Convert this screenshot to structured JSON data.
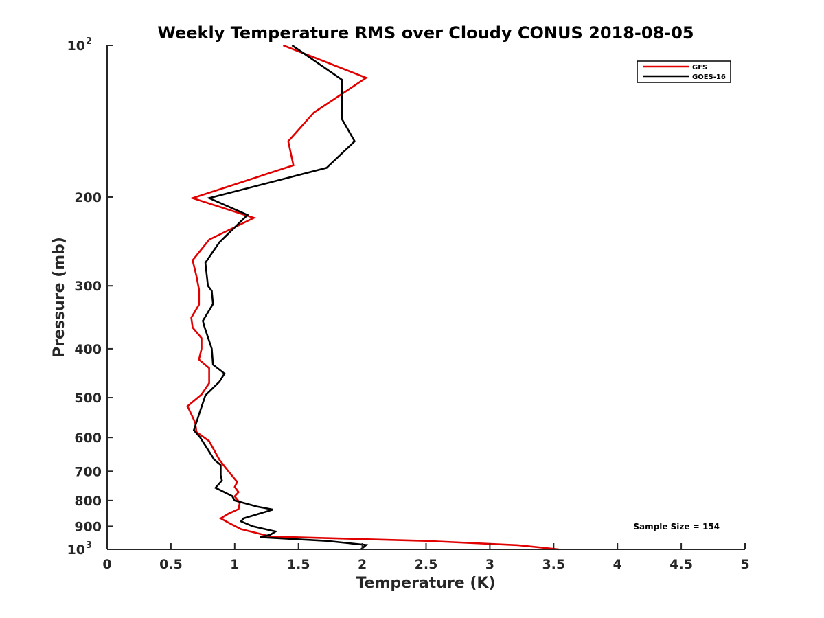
{
  "chart_data": {
    "type": "line",
    "title": "Weekly Temperature RMS over Cloudy CONUS 2018-08-05",
    "xlabel": "Temperature (K)",
    "ylabel": "Pressure (mb)",
    "xlim": [
      0,
      5
    ],
    "ylim": [
      100,
      1000
    ],
    "y_scale": "log",
    "y_reversed": true,
    "grid": false,
    "legend_position": "top-right",
    "x_ticks": [
      {
        "value": 0,
        "label": "0"
      },
      {
        "value": 0.5,
        "label": "0.5"
      },
      {
        "value": 1,
        "label": "1"
      },
      {
        "value": 1.5,
        "label": "1.5"
      },
      {
        "value": 2,
        "label": "2"
      },
      {
        "value": 2.5,
        "label": "2.5"
      },
      {
        "value": 3,
        "label": "3"
      },
      {
        "value": 3.5,
        "label": "3.5"
      },
      {
        "value": 4,
        "label": "4"
      },
      {
        "value": 4.5,
        "label": "4.5"
      },
      {
        "value": 5,
        "label": "5"
      }
    ],
    "y_ticks": [
      {
        "value": 100,
        "base": "10",
        "exp": "2"
      },
      {
        "value": 200,
        "label": "200"
      },
      {
        "value": 300,
        "label": "300"
      },
      {
        "value": 400,
        "label": "400"
      },
      {
        "value": 500,
        "label": "500"
      },
      {
        "value": 600,
        "label": "600"
      },
      {
        "value": 700,
        "label": "700"
      },
      {
        "value": 800,
        "label": "800"
      },
      {
        "value": 900,
        "label": "900"
      },
      {
        "value": 1000,
        "base": "10",
        "exp": "3"
      }
    ],
    "annotation": "Sample Size = 154",
    "series": [
      {
        "name": "GFS",
        "color": "#e00000",
        "points": [
          [
            1.38,
            100
          ],
          [
            2.03,
            116
          ],
          [
            1.62,
            136
          ],
          [
            1.42,
            155
          ],
          [
            1.46,
            173
          ],
          [
            0.67,
            201
          ],
          [
            1.15,
            220
          ],
          [
            0.8,
            243
          ],
          [
            0.67,
            267
          ],
          [
            0.7,
            287
          ],
          [
            0.72,
            305
          ],
          [
            0.72,
            327
          ],
          [
            0.66,
            347
          ],
          [
            0.67,
            363
          ],
          [
            0.74,
            381
          ],
          [
            0.74,
            400
          ],
          [
            0.72,
            420
          ],
          [
            0.8,
            437
          ],
          [
            0.8,
            468
          ],
          [
            0.74,
            493
          ],
          [
            0.63,
            520
          ],
          [
            0.69,
            560
          ],
          [
            0.7,
            585
          ],
          [
            0.8,
            610
          ],
          [
            0.88,
            664
          ],
          [
            0.96,
            705
          ],
          [
            1.02,
            735
          ],
          [
            1.0,
            752
          ],
          [
            1.03,
            770
          ],
          [
            1.0,
            785
          ],
          [
            1.04,
            808
          ],
          [
            1.03,
            832
          ],
          [
            0.95,
            850
          ],
          [
            0.89,
            868
          ],
          [
            0.96,
            888
          ],
          [
            1.05,
            912
          ],
          [
            1.28,
            943
          ],
          [
            2.5,
            962
          ],
          [
            3.22,
            981
          ],
          [
            3.54,
            1000
          ]
        ]
      },
      {
        "name": "GOES-16",
        "color": "#000000",
        "points": [
          [
            1.45,
            100
          ],
          [
            1.84,
            117
          ],
          [
            1.84,
            140
          ],
          [
            1.94,
            155
          ],
          [
            1.72,
            175
          ],
          [
            0.8,
            201
          ],
          [
            1.1,
            217
          ],
          [
            0.88,
            246
          ],
          [
            0.77,
            270
          ],
          [
            0.79,
            300
          ],
          [
            0.82,
            307
          ],
          [
            0.83,
            326
          ],
          [
            0.75,
            352
          ],
          [
            0.76,
            360
          ],
          [
            0.82,
            400
          ],
          [
            0.83,
            430
          ],
          [
            0.92,
            448
          ],
          [
            0.88,
            465
          ],
          [
            0.77,
            495
          ],
          [
            0.72,
            540
          ],
          [
            0.68,
            580
          ],
          [
            0.73,
            600
          ],
          [
            0.84,
            664
          ],
          [
            0.89,
            680
          ],
          [
            0.89,
            713
          ],
          [
            0.9,
            730
          ],
          [
            0.85,
            755
          ],
          [
            0.98,
            784
          ],
          [
            1.0,
            800
          ],
          [
            1.17,
            822
          ],
          [
            1.3,
            834
          ],
          [
            1.07,
            868
          ],
          [
            1.05,
            880
          ],
          [
            1.14,
            900
          ],
          [
            1.32,
            922
          ],
          [
            1.28,
            935
          ],
          [
            1.2,
            946
          ],
          [
            1.72,
            962
          ],
          [
            2.03,
            980
          ],
          [
            1.99,
            1000
          ]
        ]
      }
    ]
  }
}
